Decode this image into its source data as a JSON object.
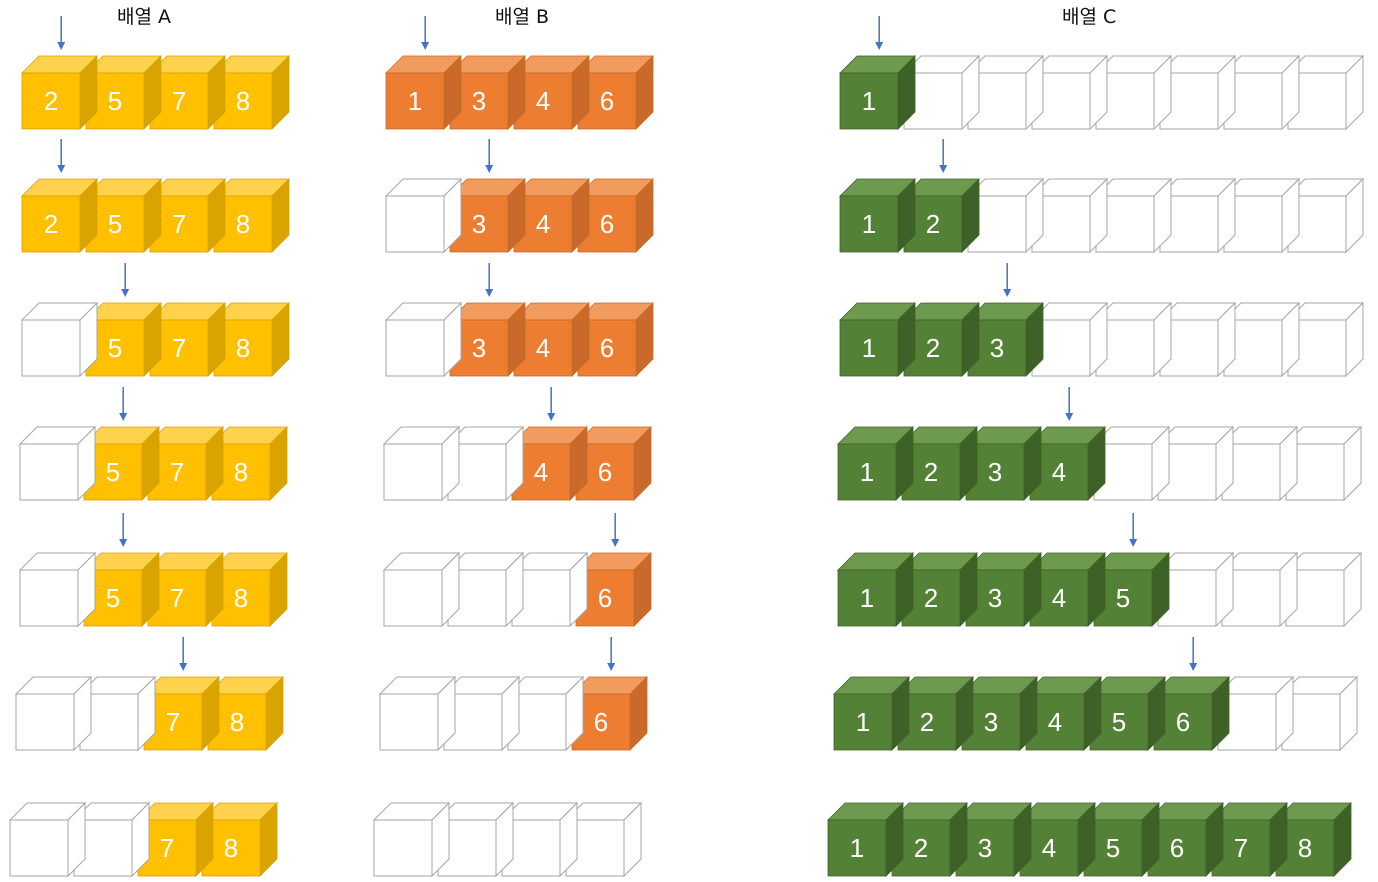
{
  "headers": {
    "a": "배열 A",
    "b": "배열 B",
    "c": "배열 C"
  },
  "colors": {
    "A": {
      "front": "#FFC000",
      "top": "#FFD24D",
      "side": "#D9A300"
    },
    "B": {
      "front": "#ED7D31",
      "top": "#F29B5E",
      "side": "#C9692A"
    },
    "C": {
      "front": "#538135",
      "top": "#6E9A4F",
      "side": "#3E6127"
    },
    "empty": "#ffffff",
    "outline": "#a6a6a6",
    "arrow": "#4472C4"
  },
  "steps": [
    {
      "A": [
        "2",
        "5",
        "7",
        "8"
      ],
      "B": [
        "1",
        "3",
        "4",
        "6"
      ],
      "C": [
        "1",
        "",
        "",
        "",
        "",
        "",
        "",
        ""
      ],
      "arrowA": 0,
      "arrowB": 0,
      "arrowC": 0
    },
    {
      "A": [
        "2",
        "5",
        "7",
        "8"
      ],
      "B": [
        "",
        "3",
        "4",
        "6"
      ],
      "C": [
        "1",
        "2",
        "",
        "",
        "",
        "",
        "",
        ""
      ],
      "arrowA": 0,
      "arrowB": 1,
      "arrowC": 1
    },
    {
      "A": [
        "",
        "5",
        "7",
        "8"
      ],
      "B": [
        "",
        "3",
        "4",
        "6"
      ],
      "C": [
        "1",
        "2",
        "3",
        "",
        "",
        "",
        "",
        ""
      ],
      "arrowA": 1,
      "arrowB": 1,
      "arrowC": 2
    },
    {
      "A": [
        "",
        "5",
        "7",
        "8"
      ],
      "B": [
        "",
        "",
        "4",
        "6"
      ],
      "C": [
        "1",
        "2",
        "3",
        "4",
        "",
        "",
        "",
        ""
      ],
      "arrowA": 1,
      "arrowB": 2,
      "arrowC": 3
    },
    {
      "A": [
        "",
        "5",
        "7",
        "8"
      ],
      "B": [
        "",
        "",
        "",
        "6"
      ],
      "C": [
        "1",
        "2",
        "3",
        "4",
        "5",
        "",
        "",
        ""
      ],
      "arrowA": 1,
      "arrowB": 3,
      "arrowC": 4
    },
    {
      "A": [
        "",
        "",
        "7",
        "8"
      ],
      "B": [
        "",
        "",
        "",
        "6"
      ],
      "C": [
        "1",
        "2",
        "3",
        "4",
        "5",
        "6",
        "",
        ""
      ],
      "arrowA": 2,
      "arrowB": 3,
      "arrowC": 5
    },
    {
      "A": [
        "",
        "",
        "7",
        "8"
      ],
      "B": [
        "",
        "",
        "",
        ""
      ],
      "C": [
        "1",
        "2",
        "3",
        "4",
        "5",
        "6",
        "7",
        "8"
      ],
      "arrowA": null,
      "arrowB": null,
      "arrowC": null
    }
  ]
}
